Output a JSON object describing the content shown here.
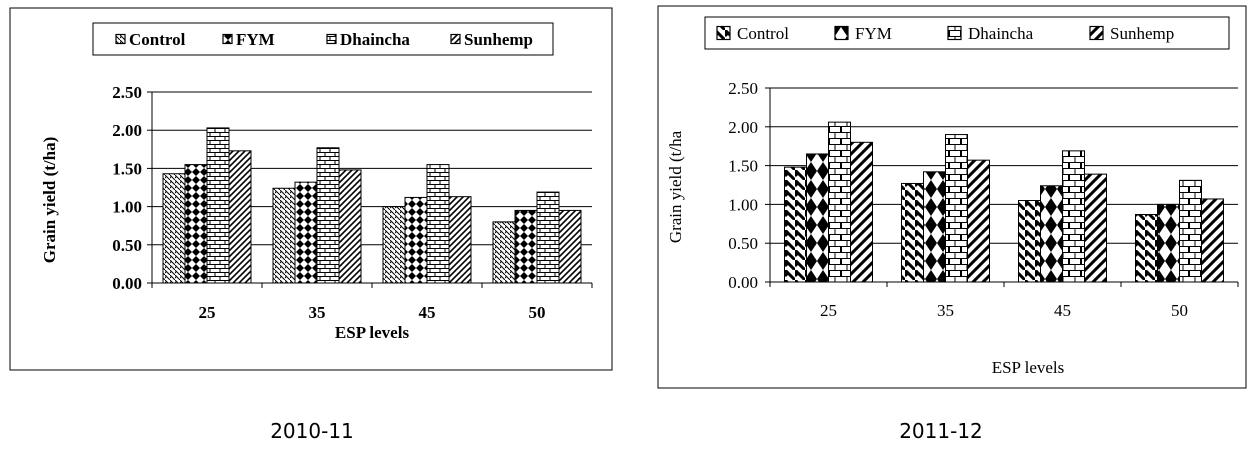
{
  "chart_data": [
    {
      "type": "bar",
      "caption": "2010-11",
      "categories": [
        "25",
        "35",
        "45",
        "50"
      ],
      "series": [
        {
          "name": "Control",
          "values": [
            1.43,
            1.24,
            1.0,
            0.8
          ]
        },
        {
          "name": "FYM",
          "values": [
            1.55,
            1.32,
            1.12,
            0.95
          ]
        },
        {
          "name": "Dhaincha",
          "values": [
            2.03,
            1.77,
            1.55,
            1.19
          ]
        },
        {
          "name": "Sunhemp",
          "values": [
            1.73,
            1.48,
            1.13,
            0.95
          ]
        }
      ],
      "xlabel": "ESP levels",
      "ylabel": "Grain yield (t/ha)",
      "ylim": [
        0,
        2.5
      ],
      "yticks": [
        "0.00",
        "0.50",
        "1.00",
        "1.50",
        "2.00",
        "2.50"
      ],
      "grid": true,
      "legend_position": "top"
    },
    {
      "type": "bar",
      "caption": "2011-12",
      "categories": [
        "25",
        "35",
        "45",
        "50"
      ],
      "series": [
        {
          "name": "Control",
          "values": [
            1.48,
            1.27,
            1.05,
            0.87
          ]
        },
        {
          "name": "FYM",
          "values": [
            1.65,
            1.42,
            1.24,
            1.0
          ]
        },
        {
          "name": "Dhaincha",
          "values": [
            2.06,
            1.9,
            1.69,
            1.31
          ]
        },
        {
          "name": "Sunhemp",
          "values": [
            1.8,
            1.57,
            1.39,
            1.07
          ]
        }
      ],
      "xlabel": "ESP levels",
      "ylabel": "Grain yield (t/ha",
      "ylim": [
        0,
        2.5
      ],
      "yticks": [
        "0.00",
        "0.50",
        "1.00",
        "1.50",
        "2.00",
        "2.50"
      ],
      "grid": true,
      "legend_position": "top"
    }
  ]
}
